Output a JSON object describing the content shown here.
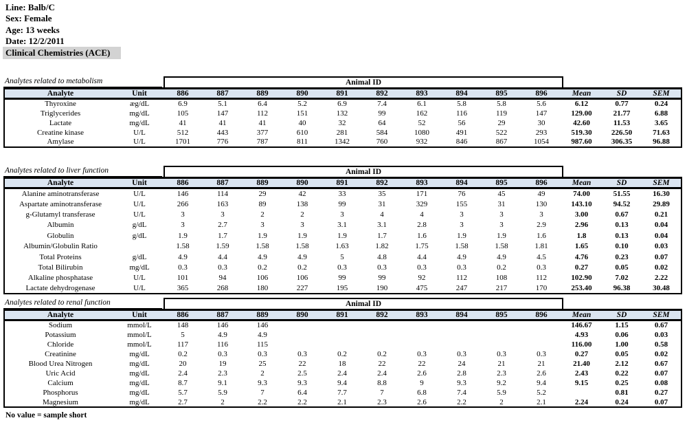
{
  "page": {
    "info_lines": [
      "Line: Balb/C",
      "Sex: Female",
      "Age: 13 weeks",
      "Date: 12/2/2011"
    ],
    "title": "Clinical Chemistries (ACE)",
    "footer_note": "No value = sample short"
  },
  "colors": {
    "table_header_bg": "#dbe5f1",
    "title_highlight_bg": "#d3d3d3",
    "border": "#000000"
  },
  "layout": {
    "animal_id_header": "Animal ID",
    "columns": [
      "Analyte",
      "Unit",
      "886",
      "887",
      "889",
      "890",
      "891",
      "892",
      "893",
      "894",
      "895",
      "896",
      "Mean",
      "SD",
      "SEM"
    ]
  },
  "tables": [
    {
      "section_label": "Analytes related to metabolism",
      "rows": [
        {
          "analyte": "Thyroxine",
          "unit": "æg/dL",
          "values": [
            "6.9",
            "5.1",
            "6.4",
            "5.2",
            "6.9",
            "7.4",
            "6.1",
            "5.8",
            "5.8",
            "5.6"
          ],
          "mean": "6.12",
          "sd": "0.77",
          "sem": "0.24"
        },
        {
          "analyte": "Triglycerides",
          "unit": "mg/dL",
          "values": [
            "105",
            "147",
            "112",
            "151",
            "132",
            "99",
            "162",
            "116",
            "119",
            "147"
          ],
          "mean": "129.00",
          "sd": "21.77",
          "sem": "6.88"
        },
        {
          "analyte": "Lactate",
          "unit": "mg/dL",
          "values": [
            "41",
            "41",
            "41",
            "40",
            "32",
            "64",
            "52",
            "56",
            "29",
            "30"
          ],
          "mean": "42.60",
          "sd": "11.53",
          "sem": "3.65"
        },
        {
          "analyte": "Creatine kinase",
          "unit": "U/L",
          "values": [
            "512",
            "443",
            "377",
            "610",
            "281",
            "584",
            "1080",
            "491",
            "522",
            "293"
          ],
          "mean": "519.30",
          "sd": "226.50",
          "sem": "71.63"
        },
        {
          "analyte": "Amylase",
          "unit": "U/L",
          "values": [
            "1701",
            "776",
            "787",
            "811",
            "1342",
            "760",
            "932",
            "846",
            "867",
            "1054"
          ],
          "mean": "987.60",
          "sd": "306.35",
          "sem": "96.88"
        }
      ]
    },
    {
      "section_label": "Analytes related to liver function",
      "rows": [
        {
          "analyte": "Alanine aminotransferase",
          "unit": "U/L",
          "values": [
            "146",
            "114",
            "29",
            "42",
            "33",
            "35",
            "171",
            "76",
            "45",
            "49"
          ],
          "mean": "74.00",
          "sd": "51.55",
          "sem": "16.30"
        },
        {
          "analyte": "Aspartate aminotransferase",
          "unit": "U/L",
          "values": [
            "266",
            "163",
            "89",
            "138",
            "99",
            "31",
            "329",
            "155",
            "31",
            "130"
          ],
          "mean": "143.10",
          "sd": "94.52",
          "sem": "29.89"
        },
        {
          "analyte": "g-Glutamyl transferase",
          "unit": "U/L",
          "values": [
            "3",
            "3",
            "2",
            "2",
            "3",
            "4",
            "4",
            "3",
            "3",
            "3"
          ],
          "mean": "3.00",
          "sd": "0.67",
          "sem": "0.21"
        },
        {
          "analyte": "Albumin",
          "unit": "g/dL",
          "values": [
            "3",
            "2.7",
            "3",
            "3",
            "3.1",
            "3.1",
            "2.8",
            "3",
            "3",
            "2.9"
          ],
          "mean": "2.96",
          "sd": "0.13",
          "sem": "0.04"
        },
        {
          "analyte": "Globulin",
          "unit": "g/dL",
          "values": [
            "1.9",
            "1.7",
            "1.9",
            "1.9",
            "1.9",
            "1.7",
            "1.6",
            "1.9",
            "1.9",
            "1.6"
          ],
          "mean": "1.8",
          "sd": "0.13",
          "sem": "0.04"
        },
        {
          "analyte": "Albumin/Globulin Ratio",
          "unit": "",
          "values": [
            "1.58",
            "1.59",
            "1.58",
            "1.58",
            "1.63",
            "1.82",
            "1.75",
            "1.58",
            "1.58",
            "1.81"
          ],
          "mean": "1.65",
          "sd": "0.10",
          "sem": "0.03"
        },
        {
          "analyte": "Total Proteins",
          "unit": "g/dL",
          "values": [
            "4.9",
            "4.4",
            "4.9",
            "4.9",
            "5",
            "4.8",
            "4.4",
            "4.9",
            "4.9",
            "4.5"
          ],
          "mean": "4.76",
          "sd": "0.23",
          "sem": "0.07"
        },
        {
          "analyte": "Total Bilirubin",
          "unit": "mg/dL",
          "values": [
            "0.3",
            "0.3",
            "0.2",
            "0.2",
            "0.3",
            "0.3",
            "0.3",
            "0.3",
            "0.2",
            "0.3"
          ],
          "mean": "0.27",
          "sd": "0.05",
          "sem": "0.02"
        },
        {
          "analyte": "Alkaline phosphatase",
          "unit": "U/L",
          "values": [
            "101",
            "94",
            "106",
            "106",
            "99",
            "99",
            "92",
            "112",
            "108",
            "112"
          ],
          "mean": "102.90",
          "sd": "7.02",
          "sem": "2.22"
        },
        {
          "analyte": "Lactate dehydrogenase",
          "unit": "U/L",
          "values": [
            "365",
            "268",
            "180",
            "227",
            "195",
            "190",
            "475",
            "247",
            "217",
            "170"
          ],
          "mean": "253.40",
          "sd": "96.38",
          "sem": "30.48"
        }
      ]
    },
    {
      "section_label": "Analytes related to renal function",
      "rows": [
        {
          "analyte": "Sodium",
          "unit": "mmol/L",
          "values": [
            "148",
            "146",
            "146",
            "",
            "",
            "",
            "",
            "",
            "",
            ""
          ],
          "mean": "146.67",
          "sd": "1.15",
          "sem": "0.67"
        },
        {
          "analyte": "Potassium",
          "unit": "mmol/L",
          "values": [
            "5",
            "4.9",
            "4.9",
            "",
            "",
            "",
            "",
            "",
            "",
            ""
          ],
          "mean": "4.93",
          "sd": "0.06",
          "sem": "0.03"
        },
        {
          "analyte": "Chloride",
          "unit": "mmol/L",
          "values": [
            "117",
            "116",
            "115",
            "",
            "",
            "",
            "",
            "",
            "",
            ""
          ],
          "mean": "116.00",
          "sd": "1.00",
          "sem": "0.58"
        },
        {
          "analyte": "Creatinine",
          "unit": "mg/dL",
          "values": [
            "0.2",
            "0.3",
            "0.3",
            "0.3",
            "0.2",
            "0.2",
            "0.3",
            "0.3",
            "0.3",
            "0.3"
          ],
          "mean": "0.27",
          "sd": "0.05",
          "sem": "0.02"
        },
        {
          "analyte": "Blood Urea Nitrogen",
          "unit": "mg/dL",
          "values": [
            "20",
            "19",
            "25",
            "22",
            "18",
            "22",
            "22",
            "24",
            "21",
            "21"
          ],
          "mean": "21.40",
          "sd": "2.12",
          "sem": "0.67"
        },
        {
          "analyte": "Uric Acid",
          "unit": "mg/dL",
          "values": [
            "2.4",
            "2.3",
            "2",
            "2.5",
            "2.4",
            "2.4",
            "2.6",
            "2.8",
            "2.3",
            "2.6"
          ],
          "mean": "2.43",
          "sd": "0.22",
          "sem": "0.07"
        },
        {
          "analyte": "Calcium",
          "unit": "mg/dL",
          "values": [
            "8.7",
            "9.1",
            "9.3",
            "9.3",
            "9.4",
            "8.8",
            "9",
            "9.3",
            "9.2",
            "9.4"
          ],
          "mean": "9.15",
          "sd": "0.25",
          "sem": "0.08"
        },
        {
          "analyte": "Phosphorus",
          "unit": "mg/dL",
          "values": [
            "5.7",
            "5.9",
            "7",
            "6.4",
            "7.7",
            "7",
            "6.8",
            "7.4",
            "5.9",
            "5.2"
          ],
          "mean": "",
          "sd": "0.81",
          "sem": "0.27"
        },
        {
          "analyte": "Magnesium",
          "unit": "mg/dL",
          "values": [
            "2.7",
            "2",
            "2.2",
            "2.2",
            "2.1",
            "2.3",
            "2.6",
            "2.2",
            "2",
            "2.1"
          ],
          "mean": "2.24",
          "sd": "0.24",
          "sem": "0.07"
        }
      ]
    }
  ]
}
